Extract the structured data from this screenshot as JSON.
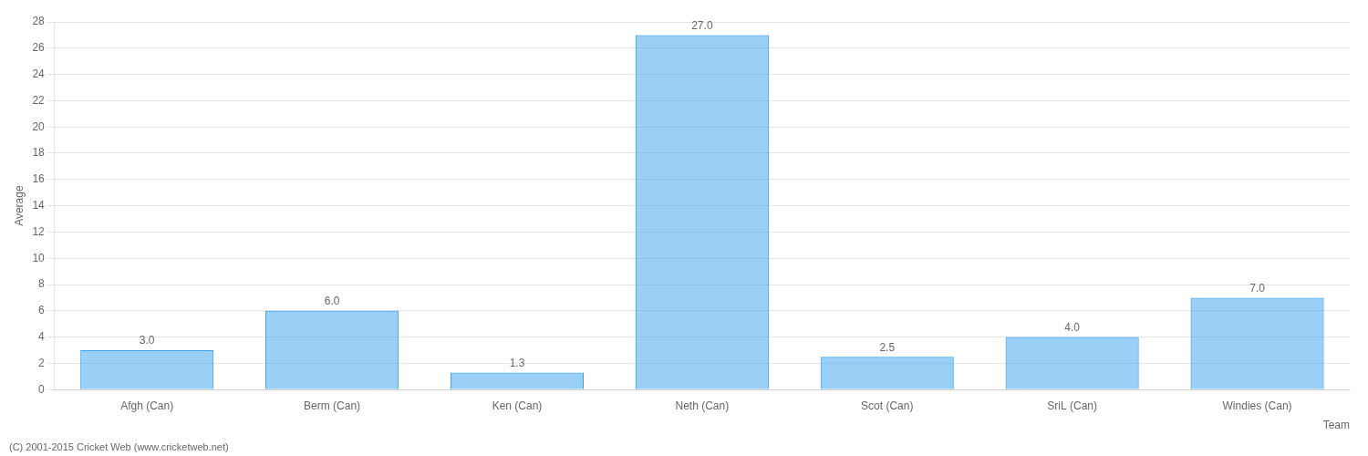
{
  "chart_data": {
    "type": "bar",
    "categories": [
      "Afgh (Can)",
      "Berm (Can)",
      "Ken (Can)",
      "Neth (Can)",
      "Scot (Can)",
      "SriL (Can)",
      "Windies (Can)"
    ],
    "values": [
      3.0,
      6.0,
      1.3,
      27.0,
      2.5,
      4.0,
      7.0
    ],
    "value_labels": [
      "3.0",
      "6.0",
      "1.3",
      "27.0",
      "2.5",
      "4.0",
      "7.0"
    ],
    "data_labels": true,
    "xlabel": "Team",
    "ylabel": "Average",
    "ylim": [
      0,
      28
    ],
    "yticks": [
      0,
      2,
      4,
      6,
      8,
      10,
      12,
      14,
      16,
      18,
      20,
      22,
      24,
      26,
      28
    ],
    "grid": true,
    "annotations": [
      "(C) 2001-2015 Cricket Web (www.cricketweb.net)"
    ]
  }
}
